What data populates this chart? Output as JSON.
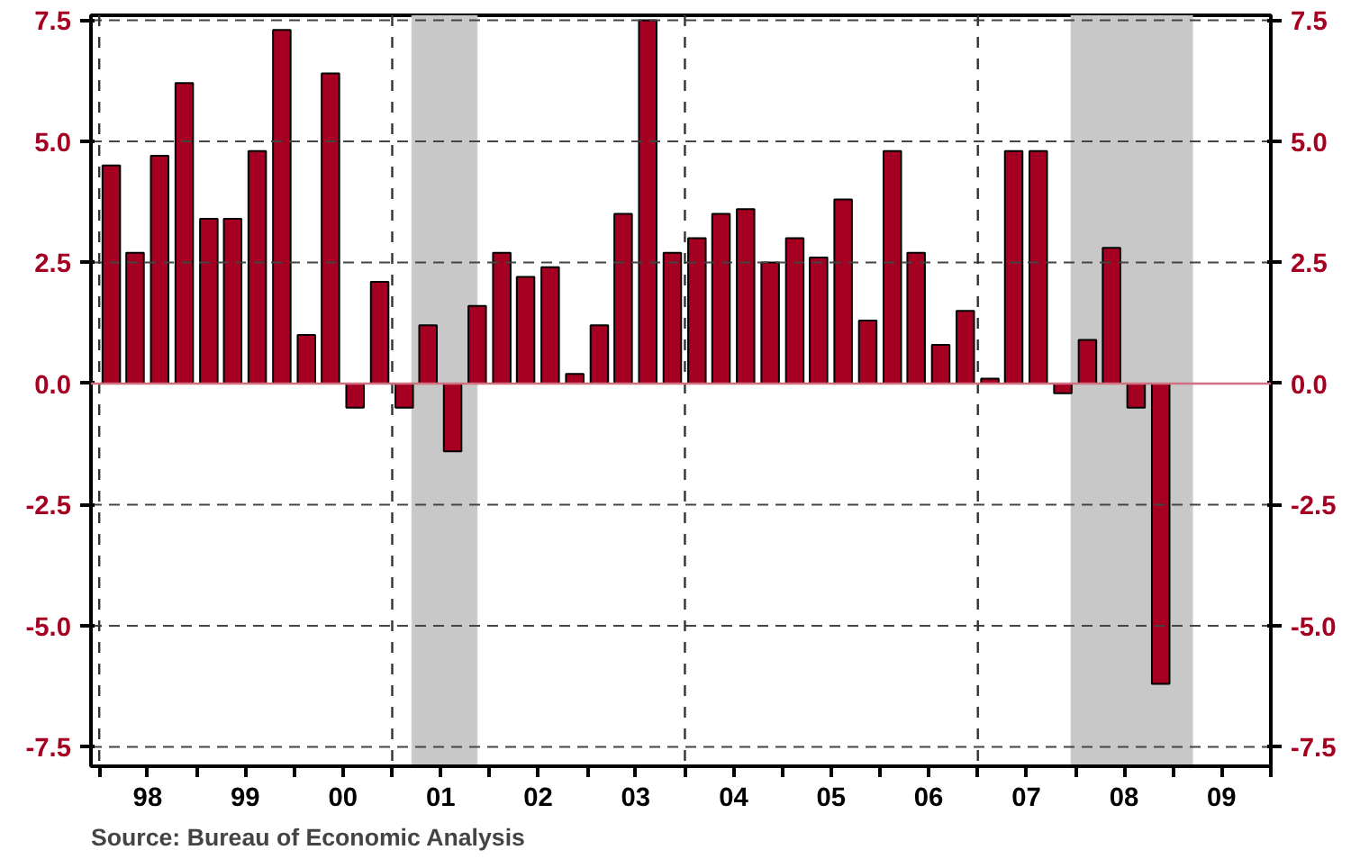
{
  "chart_data": {
    "type": "bar",
    "x": [
      "1998-02-15",
      "1998-05-15",
      "1998-08-15",
      "1998-11-15",
      "1999-02-15",
      "1999-05-15",
      "1999-08-15",
      "1999-11-15",
      "2000-02-15",
      "2000-05-15",
      "2000-08-15",
      "2000-11-15",
      "2001-02-15",
      "2001-05-15",
      "2001-08-15",
      "2001-11-15",
      "2002-02-15",
      "2002-05-15",
      "2002-08-15",
      "2002-11-15",
      "2003-02-15",
      "2003-05-15",
      "2003-08-15",
      "2003-11-15",
      "2004-02-15",
      "2004-05-15",
      "2004-08-15",
      "2004-11-15",
      "2005-02-15",
      "2005-05-15",
      "2005-08-15",
      "2005-11-15",
      "2006-02-15",
      "2006-05-15",
      "2006-08-15",
      "2006-11-15",
      "2007-02-15",
      "2007-05-15",
      "2007-08-15",
      "2007-11-15",
      "2008-02-15",
      "2008-05-15",
      "2008-08-15",
      "2008-11-15"
    ],
    "values": [
      4.5,
      2.7,
      4.7,
      6.2,
      3.4,
      3.4,
      4.8,
      7.3,
      1.0,
      6.4,
      -0.5,
      2.1,
      -0.5,
      1.2,
      -1.4,
      1.6,
      2.7,
      2.2,
      2.4,
      0.2,
      1.2,
      3.5,
      7.5,
      2.7,
      3.0,
      3.5,
      3.6,
      2.5,
      3.0,
      2.6,
      3.8,
      1.3,
      4.8,
      2.7,
      0.8,
      1.5,
      0.1,
      4.8,
      4.8,
      -0.2,
      0.9,
      2.8,
      -0.5,
      -6.2
    ],
    "color": "#a50021",
    "xlim": [
      "1997-12-01",
      "2010-01-01"
    ],
    "xticks": [
      {
        "value": "1998-01-01",
        "label": null
      },
      {
        "value": "1998-07-01",
        "label": "98"
      },
      {
        "value": "1999-01-01",
        "label": null
      },
      {
        "value": "1999-07-01",
        "label": "99"
      },
      {
        "value": "2000-01-01",
        "label": null
      },
      {
        "value": "2000-07-01",
        "label": "00"
      },
      {
        "value": "2001-01-01",
        "label": null
      },
      {
        "value": "2001-07-01",
        "label": "01"
      },
      {
        "value": "2002-01-01",
        "label": null
      },
      {
        "value": "2002-07-01",
        "label": "02"
      },
      {
        "value": "2003-01-01",
        "label": null
      },
      {
        "value": "2003-07-01",
        "label": "03"
      },
      {
        "value": "2004-01-01",
        "label": null
      },
      {
        "value": "2004-07-01",
        "label": "04"
      },
      {
        "value": "2005-01-01",
        "label": null
      },
      {
        "value": "2005-07-01",
        "label": "05"
      },
      {
        "value": "2006-01-01",
        "label": null
      },
      {
        "value": "2006-07-01",
        "label": "06"
      },
      {
        "value": "2007-01-01",
        "label": null
      },
      {
        "value": "2007-07-01",
        "label": "07"
      },
      {
        "value": "2008-01-01",
        "label": null
      },
      {
        "value": "2008-07-01",
        "label": "08"
      },
      {
        "value": "2009-01-01",
        "label": null
      },
      {
        "value": "2009-07-01",
        "label": "09"
      },
      {
        "value": "2010-01-01",
        "label": null
      }
    ],
    "ylim": [
      -7.9,
      7.6
    ],
    "yticks": [
      {
        "value": -7.5,
        "label": "-7.5"
      },
      {
        "value": -5,
        "label": "-5.0"
      },
      {
        "value": -2.5,
        "label": "-2.5"
      },
      {
        "value": 0,
        "label": "0.0"
      },
      {
        "value": 2.5,
        "label": "2.5"
      },
      {
        "value": 5,
        "label": "5.0"
      },
      {
        "value": 7.5,
        "label": "7.5"
      }
    ],
    "y2lim": [
      -7.9,
      7.6
    ],
    "y2ticks": [
      {
        "value": -7.5,
        "label": "-7.5"
      },
      {
        "value": -5,
        "label": "-5.0"
      },
      {
        "value": -2.5,
        "label": "-2.5"
      },
      {
        "value": 0,
        "label": "0.0"
      },
      {
        "value": 2.5,
        "label": "2.5"
      },
      {
        "value": 5,
        "label": "5.0"
      },
      {
        "value": 7.5,
        "label": "7.5"
      }
    ],
    "grid": "y",
    "ref_lines": [
      {
        "axis": "x",
        "value": "1998-01-01",
        "color": "#333333",
        "line_style": "dashed"
      },
      {
        "axis": "x",
        "value": "2001-01-01",
        "color": "#333333",
        "line_style": "dashed"
      },
      {
        "axis": "x",
        "value": "2004-01-01",
        "color": "#333333",
        "line_style": "dashed"
      },
      {
        "axis": "x",
        "value": "2007-01-01",
        "color": "#333333",
        "line_style": "dashed"
      },
      {
        "axis": "y",
        "value": 0,
        "color": "#d07080",
        "line_style": "solid"
      }
    ],
    "bands": [
      {
        "axis": "x",
        "from": "2001-03-15",
        "to": "2001-11-15",
        "color": "#c8c8c8"
      },
      {
        "axis": "x",
        "from": "2007-12-15",
        "to": "2009-03-15",
        "color": "#c8c8c8"
      }
    ],
    "annotations": [
      "Source:  Bureau of Economic Analysis"
    ]
  }
}
